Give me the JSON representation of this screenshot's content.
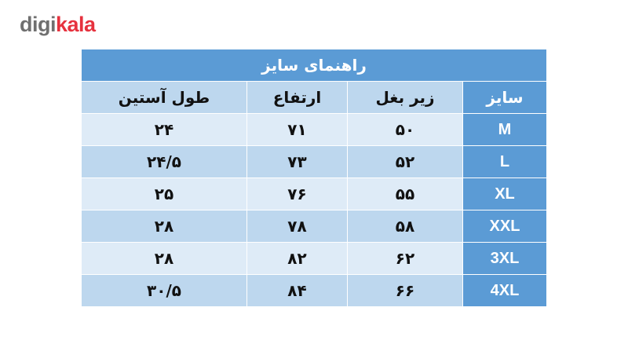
{
  "logo": {
    "part1": "digi",
    "part2": "kala"
  },
  "table": {
    "title": "راهنمای سایز",
    "headers": [
      "سایز",
      "زیر بغل",
      "ارتفاع",
      "طول آستین"
    ],
    "rows": [
      [
        "M",
        "۵۰",
        "۷۱",
        "۲۴"
      ],
      [
        "L",
        "۵۲",
        "۷۳",
        "۲۴/۵"
      ],
      [
        "XL",
        "۵۵",
        "۷۶",
        "۲۵"
      ],
      [
        "XXL",
        "۵۸",
        "۷۸",
        "۲۸"
      ],
      [
        "3XL",
        "۶۲",
        "۸۲",
        "۲۸"
      ],
      [
        "4XL",
        "۶۶",
        "۸۴",
        "۳۰/۵"
      ]
    ]
  },
  "colors": {
    "header": "#5b9bd5",
    "light": "#deebf7",
    "mid": "#bdd7ee",
    "brand_red": "#e6323e"
  }
}
